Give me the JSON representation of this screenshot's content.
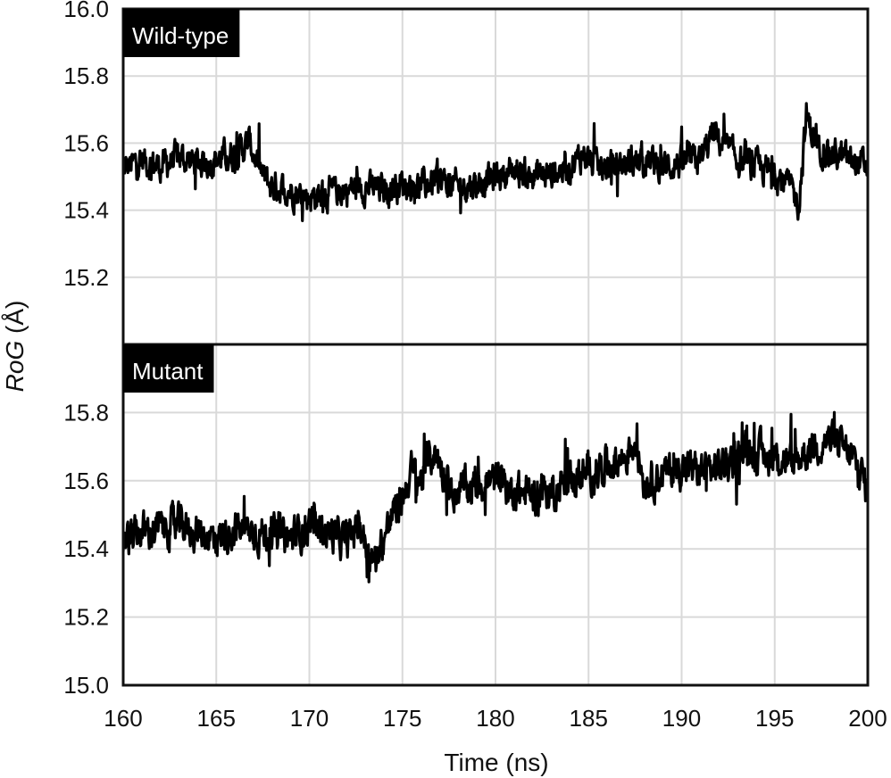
{
  "chart_data": {
    "type": "line",
    "xlabel": "Time (ns)",
    "ylabel_main": "RoG",
    "ylabel_unit": " (Å)",
    "xlim": [
      160,
      200
    ],
    "x_ticks": [
      "160",
      "165",
      "170",
      "175",
      "180",
      "185",
      "190",
      "195",
      "200"
    ],
    "grid": true,
    "line_color": "#000000",
    "grid_color": "#d9d9d9",
    "label_box_color": "#000000",
    "panels": [
      {
        "label": "Wild-type",
        "ylim": [
          15.0,
          16.0
        ],
        "y_ticks": [
          "15.2",
          "15.4",
          "15.6",
          "15.8",
          "16.0"
        ],
        "series": [
          {
            "x": [
              160,
              161,
              162,
              163,
              164,
              165,
              166,
              166.8,
              167.5,
              168,
              169,
              170,
              171,
              172,
              173,
              174,
              175,
              176,
              177,
              178,
              179,
              180,
              181,
              182,
              183,
              184,
              184.8,
              185.5,
              186,
              187,
              188,
              189,
              190,
              191,
              191.7,
              192.5,
              193,
              194,
              195,
              195.8,
              196.3,
              196.7,
              197.2,
              198,
              199,
              200
            ],
            "y": [
              15.52,
              15.55,
              15.53,
              15.56,
              15.54,
              15.55,
              15.57,
              15.6,
              15.5,
              15.47,
              15.46,
              15.44,
              15.45,
              15.46,
              15.47,
              15.46,
              15.48,
              15.47,
              15.49,
              15.47,
              15.48,
              15.5,
              15.52,
              15.5,
              15.51,
              15.53,
              15.57,
              15.52,
              15.53,
              15.54,
              15.55,
              15.53,
              15.54,
              15.55,
              15.63,
              15.58,
              15.55,
              15.53,
              15.51,
              15.47,
              15.42,
              15.68,
              15.6,
              15.57,
              15.55,
              15.53
            ],
            "spread": 0.055
          }
        ]
      },
      {
        "label": "Mutant",
        "ylim": [
          15.0,
          16.0
        ],
        "y_ticks": [
          "15.0",
          "15.2",
          "15.4",
          "15.6",
          "15.8"
        ],
        "series": [
          {
            "x": [
              160,
              161,
              162,
              163,
              164,
              165,
              166,
              167,
              168,
              169,
              170,
              171,
              172,
              172.7,
              173.3,
              174,
              174.5,
              175,
              175.5,
              176,
              176.5,
              177,
              177.5,
              178,
              179,
              180,
              181,
              182,
              183,
              184,
              185,
              186,
              187,
              187.5,
              188,
              189,
              190,
              191,
              192,
              193,
              193.5,
              194,
              195,
              196,
              197,
              198,
              199,
              199.7,
              200
            ],
            "y": [
              15.42,
              15.45,
              15.46,
              15.47,
              15.45,
              15.43,
              15.46,
              15.45,
              15.44,
              15.43,
              15.47,
              15.45,
              15.42,
              15.48,
              15.35,
              15.43,
              15.5,
              15.55,
              15.63,
              15.6,
              15.68,
              15.66,
              15.58,
              15.57,
              15.59,
              15.6,
              15.57,
              15.56,
              15.57,
              15.6,
              15.62,
              15.65,
              15.67,
              15.72,
              15.6,
              15.62,
              15.64,
              15.63,
              15.64,
              15.67,
              15.7,
              15.68,
              15.67,
              15.65,
              15.7,
              15.72,
              15.68,
              15.62,
              15.57
            ],
            "spread": 0.065
          }
        ]
      }
    ]
  }
}
